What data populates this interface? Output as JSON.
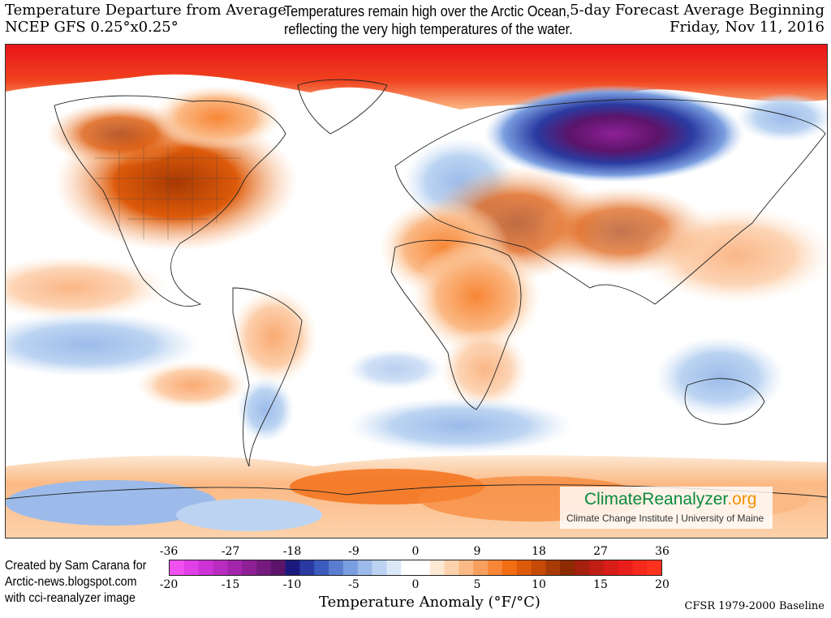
{
  "header": {
    "left_line1": "Temperature Departure from Average",
    "left_line2": "NCEP GFS 0.25°x0.25°",
    "center_line1": "Temperatures remain high over the Arctic Ocean,",
    "center_line2": "reflecting the very high temperatures of the water.",
    "right_line1": "5-day Forecast Average Beginning",
    "right_line2": "Friday, Nov 11, 2016"
  },
  "logo": {
    "brand_main": "ClimateReanalyzer",
    "brand_tld": ".org",
    "subtitle": "Climate Change Institute | University of Maine",
    "colors": {
      "main": "#0c8a3c",
      "tld": "#f39200"
    }
  },
  "credit": {
    "line1": "Created by Sam Carana for",
    "line2": "Arctic-news.blogspot.com",
    "line3": "with cci-reanalyzer image"
  },
  "legend": {
    "label": "Temperature Anomaly (°F/°C)",
    "ticks_f": [
      "-36",
      "-27",
      "-18",
      "-9",
      "0",
      "9",
      "18",
      "27",
      "36"
    ],
    "ticks_c": [
      "-20",
      "-15",
      "-10",
      "-5",
      "0",
      "5",
      "10",
      "15",
      "20"
    ],
    "colors": [
      "#f050f0",
      "#e040e6",
      "#cc33d4",
      "#b82dc0",
      "#a326aa",
      "#8e2096",
      "#761a80",
      "#5c146a",
      "#1a1a7e",
      "#2a3aa0",
      "#3c5bbd",
      "#5a7dd0",
      "#7a9ee0",
      "#9cbbea",
      "#bcd4f2",
      "#dbe8f8",
      "#ffffff",
      "#ffffff",
      "#fde9d4",
      "#fcd2ac",
      "#fbb985",
      "#f99f5e",
      "#f78636",
      "#f26d14",
      "#dd5a0a",
      "#c44a06",
      "#a83a04",
      "#8c2a02",
      "#a5200e",
      "#c01e14",
      "#d81c18",
      "#e91e1a",
      "#f5281c",
      "#ff321e"
    ]
  },
  "baseline": "CFSR 1979-2000 Baseline"
}
